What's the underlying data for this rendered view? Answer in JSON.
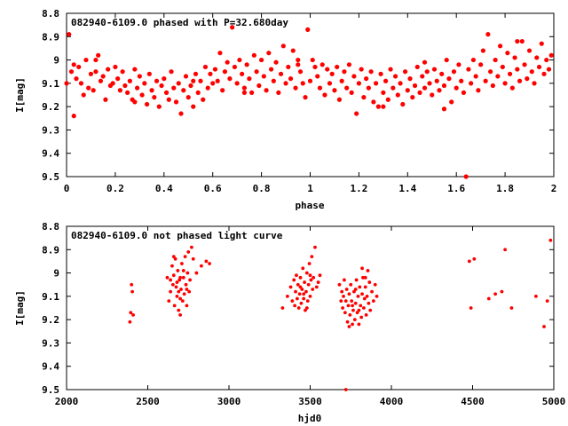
{
  "chart_data": [
    {
      "type": "scatter",
      "title": "082940-6109.0 phased with P=32.680day",
      "xlabel": "phase",
      "ylabel": "I[mag]",
      "xlim": [
        0,
        2
      ],
      "ylim": [
        8.8,
        9.5
      ],
      "y_inverted": true,
      "grid": false,
      "legend": "none",
      "marker_color": "#ff0000",
      "xticks": [
        "0",
        "0.2",
        "0.4",
        "0.6",
        "0.8",
        "1",
        "1.2",
        "1.4",
        "1.6",
        "1.8",
        "2"
      ],
      "yticks": [
        "8.8",
        "8.9",
        "9",
        "9.1",
        "9.2",
        "9.3",
        "9.4",
        "9.5"
      ],
      "points": [
        [
          0.0,
          9.1
        ],
        [
          0.01,
          8.89
        ],
        [
          0.02,
          9.05
        ],
        [
          0.03,
          9.02
        ],
        [
          0.03,
          9.24
        ],
        [
          0.04,
          9.08
        ],
        [
          0.05,
          9.03
        ],
        [
          0.06,
          9.1
        ],
        [
          0.07,
          9.15
        ],
        [
          0.08,
          9.0
        ],
        [
          0.09,
          9.12
        ],
        [
          0.1,
          9.06
        ],
        [
          0.11,
          9.13
        ],
        [
          0.12,
          9.05
        ],
        [
          0.13,
          8.98
        ],
        [
          0.14,
          9.09
        ],
        [
          0.15,
          9.07
        ],
        [
          0.16,
          9.17
        ],
        [
          0.17,
          9.04
        ],
        [
          0.18,
          9.11
        ],
        [
          0.19,
          9.1
        ],
        [
          0.2,
          9.03
        ],
        [
          0.21,
          9.08
        ],
        [
          0.22,
          9.13
        ],
        [
          0.23,
          9.05
        ],
        [
          0.24,
          9.11
        ],
        [
          0.25,
          9.14
        ],
        [
          0.26,
          9.09
        ],
        [
          0.27,
          9.17
        ],
        [
          0.28,
          9.04
        ],
        [
          0.29,
          9.12
        ],
        [
          0.3,
          9.07
        ],
        [
          0.31,
          9.15
        ],
        [
          0.32,
          9.1
        ],
        [
          0.33,
          9.19
        ],
        [
          0.34,
          9.06
        ],
        [
          0.35,
          9.13
        ],
        [
          0.36,
          9.16
        ],
        [
          0.37,
          9.09
        ],
        [
          0.38,
          9.2
        ],
        [
          0.39,
          9.11
        ],
        [
          0.4,
          9.08
        ],
        [
          0.41,
          9.14
        ],
        [
          0.42,
          9.17
        ],
        [
          0.43,
          9.05
        ],
        [
          0.44,
          9.12
        ],
        [
          0.45,
          9.18
        ],
        [
          0.46,
          9.1
        ],
        [
          0.47,
          9.23
        ],
        [
          0.48,
          9.13
        ],
        [
          0.49,
          9.07
        ],
        [
          0.5,
          9.16
        ],
        [
          0.51,
          9.11
        ],
        [
          0.52,
          9.2
        ],
        [
          0.53,
          9.06
        ],
        [
          0.54,
          9.14
        ],
        [
          0.55,
          9.09
        ],
        [
          0.56,
          9.17
        ],
        [
          0.57,
          9.03
        ],
        [
          0.58,
          9.12
        ],
        [
          0.59,
          9.06
        ],
        [
          0.6,
          9.1
        ],
        [
          0.61,
          9.04
        ],
        [
          0.62,
          9.09
        ],
        [
          0.63,
          8.97
        ],
        [
          0.64,
          9.13
        ],
        [
          0.65,
          9.05
        ],
        [
          0.66,
          9.01
        ],
        [
          0.67,
          9.08
        ],
        [
          0.68,
          8.86
        ],
        [
          0.69,
          9.03
        ],
        [
          0.7,
          9.1
        ],
        [
          0.71,
          9.0
        ],
        [
          0.72,
          9.06
        ],
        [
          0.73,
          9.12
        ],
        [
          0.74,
          9.02
        ],
        [
          0.75,
          9.08
        ],
        [
          0.76,
          9.14
        ],
        [
          0.77,
          8.98
        ],
        [
          0.78,
          9.05
        ],
        [
          0.79,
          9.11
        ],
        [
          0.8,
          9.0
        ],
        [
          0.81,
          9.07
        ],
        [
          0.82,
          9.13
        ],
        [
          0.83,
          8.97
        ],
        [
          0.84,
          9.04
        ],
        [
          0.85,
          9.09
        ],
        [
          0.86,
          9.01
        ],
        [
          0.87,
          9.14
        ],
        [
          0.88,
          9.06
        ],
        [
          0.89,
          8.94
        ],
        [
          0.9,
          9.1
        ],
        [
          0.91,
          9.03
        ],
        [
          0.92,
          9.08
        ],
        [
          0.93,
          8.96
        ],
        [
          0.94,
          9.12
        ],
        [
          0.95,
          9.02
        ],
        [
          0.96,
          9.05
        ],
        [
          0.97,
          9.1
        ],
        [
          0.98,
          9.16
        ],
        [
          0.99,
          8.87
        ],
        [
          1.0,
          9.09
        ],
        [
          1.01,
          9.0
        ],
        [
          1.02,
          9.03
        ],
        [
          1.03,
          9.07
        ],
        [
          1.04,
          9.12
        ],
        [
          1.05,
          9.02
        ],
        [
          1.06,
          9.15
        ],
        [
          1.07,
          9.04
        ],
        [
          1.08,
          9.1
        ],
        [
          1.09,
          9.06
        ],
        [
          1.1,
          9.13
        ],
        [
          1.11,
          9.03
        ],
        [
          1.12,
          9.17
        ],
        [
          1.13,
          9.09
        ],
        [
          1.14,
          9.05
        ],
        [
          1.15,
          9.12
        ],
        [
          1.16,
          9.02
        ],
        [
          1.17,
          9.14
        ],
        [
          1.18,
          9.07
        ],
        [
          1.19,
          9.23
        ],
        [
          1.2,
          9.1
        ],
        [
          1.21,
          9.04
        ],
        [
          1.22,
          9.16
        ],
        [
          1.23,
          9.08
        ],
        [
          1.24,
          9.12
        ],
        [
          1.25,
          9.05
        ],
        [
          1.26,
          9.18
        ],
        [
          1.27,
          9.1
        ],
        [
          1.28,
          9.2
        ],
        [
          1.29,
          9.06
        ],
        [
          1.3,
          9.14
        ],
        [
          1.31,
          9.09
        ],
        [
          1.32,
          9.17
        ],
        [
          1.33,
          9.04
        ],
        [
          1.34,
          9.12
        ],
        [
          1.35,
          9.07
        ],
        [
          1.36,
          9.15
        ],
        [
          1.37,
          9.1
        ],
        [
          1.38,
          9.19
        ],
        [
          1.39,
          9.05
        ],
        [
          1.4,
          9.13
        ],
        [
          1.41,
          9.08
        ],
        [
          1.42,
          9.16
        ],
        [
          1.43,
          9.11
        ],
        [
          1.44,
          9.03
        ],
        [
          1.45,
          9.14
        ],
        [
          1.46,
          9.07
        ],
        [
          1.47,
          9.12
        ],
        [
          1.48,
          9.05
        ],
        [
          1.49,
          9.1
        ],
        [
          1.5,
          9.15
        ],
        [
          1.51,
          9.04
        ],
        [
          1.52,
          9.09
        ],
        [
          1.53,
          9.13
        ],
        [
          1.54,
          9.06
        ],
        [
          1.55,
          9.11
        ],
        [
          1.56,
          9.0
        ],
        [
          1.57,
          9.08
        ],
        [
          1.58,
          9.18
        ],
        [
          1.59,
          9.05
        ],
        [
          1.6,
          9.12
        ],
        [
          1.61,
          9.02
        ],
        [
          1.62,
          9.09
        ],
        [
          1.63,
          9.14
        ],
        [
          1.64,
          9.5
        ],
        [
          1.65,
          9.04
        ],
        [
          1.66,
          9.1
        ],
        [
          1.67,
          9.0
        ],
        [
          1.68,
          9.07
        ],
        [
          1.69,
          9.13
        ],
        [
          1.7,
          9.02
        ],
        [
          1.71,
          8.96
        ],
        [
          1.72,
          9.09
        ],
        [
          1.73,
          8.89
        ],
        [
          1.74,
          9.05
        ],
        [
          1.75,
          9.11
        ],
        [
          1.76,
          9.0
        ],
        [
          1.77,
          9.07
        ],
        [
          1.78,
          8.94
        ],
        [
          1.79,
          9.03
        ],
        [
          1.8,
          9.1
        ],
        [
          1.81,
          8.97
        ],
        [
          1.82,
          9.06
        ],
        [
          1.83,
          9.12
        ],
        [
          1.84,
          8.99
        ],
        [
          1.85,
          9.04
        ],
        [
          1.86,
          9.09
        ],
        [
          1.87,
          8.92
        ],
        [
          1.88,
          9.02
        ],
        [
          1.89,
          9.08
        ],
        [
          1.9,
          8.96
        ],
        [
          1.91,
          9.05
        ],
        [
          1.92,
          9.1
        ],
        [
          1.93,
          8.99
        ],
        [
          1.94,
          9.03
        ],
        [
          1.95,
          8.93
        ],
        [
          1.96,
          9.06
        ],
        [
          1.97,
          9.0
        ],
        [
          1.98,
          9.04
        ],
        [
          1.99,
          8.98
        ],
        [
          0.52,
          9.09
        ],
        [
          0.28,
          9.18
        ],
        [
          0.95,
          9.0
        ],
        [
          1.3,
          9.2
        ],
        [
          1.55,
          9.21
        ],
        [
          0.12,
          9.0
        ],
        [
          0.73,
          9.14
        ],
        [
          1.47,
          9.01
        ],
        [
          1.85,
          8.92
        ]
      ]
    },
    {
      "type": "scatter",
      "title": "082940-6109.0 not phased light curve",
      "xlabel": "hjd0",
      "ylabel": "I[mag]",
      "xlim": [
        2000,
        5000
      ],
      "ylim": [
        8.8,
        9.5
      ],
      "y_inverted": true,
      "grid": false,
      "legend": "none",
      "marker_color": "#ff0000",
      "xticks": [
        "2000",
        "2500",
        "3000",
        "3500",
        "4000",
        "4500",
        "5000"
      ],
      "yticks": [
        "8.8",
        "8.9",
        "9",
        "9.1",
        "9.2",
        "9.3",
        "9.4",
        "9.5"
      ],
      "points": [
        [
          2390,
          9.21
        ],
        [
          2395,
          9.17
        ],
        [
          2400,
          9.05
        ],
        [
          2405,
          9.08
        ],
        [
          2410,
          9.18
        ],
        [
          2620,
          9.02
        ],
        [
          2630,
          9.12
        ],
        [
          2640,
          9.08
        ],
        [
          2650,
          8.97
        ],
        [
          2655,
          9.05
        ],
        [
          2660,
          9.01
        ],
        [
          2665,
          9.14
        ],
        [
          2670,
          8.94
        ],
        [
          2675,
          9.06
        ],
        [
          2680,
          9.1
        ],
        [
          2685,
          8.99
        ],
        [
          2690,
          9.16
        ],
        [
          2695,
          9.03
        ],
        [
          2700,
          9.18
        ],
        [
          2705,
          9.07
        ],
        [
          2710,
          8.96
        ],
        [
          2715,
          9.12
        ],
        [
          2720,
          9.02
        ],
        [
          2725,
          9.09
        ],
        [
          2730,
          8.93
        ],
        [
          2735,
          9.05
        ],
        [
          2740,
          9.14
        ],
        [
          2745,
          9.0
        ],
        [
          2750,
          8.91
        ],
        [
          2755,
          9.08
        ],
        [
          2760,
          9.03
        ],
        [
          2770,
          8.89
        ],
        [
          2780,
          8.94
        ],
        [
          2800,
          9.0
        ],
        [
          2830,
          8.97
        ],
        [
          2860,
          8.95
        ],
        [
          2880,
          8.96
        ],
        [
          2640,
          9.03
        ],
        [
          2660,
          8.93
        ],
        [
          2680,
          9.04
        ],
        [
          2700,
          9.11
        ],
        [
          2720,
          8.99
        ],
        [
          2740,
          9.07
        ],
        [
          2700,
          9.02
        ],
        [
          2690,
          9.08
        ],
        [
          3330,
          9.15
        ],
        [
          3360,
          9.1
        ],
        [
          3380,
          9.06
        ],
        [
          3390,
          9.12
        ],
        [
          3400,
          9.03
        ],
        [
          3405,
          9.14
        ],
        [
          3410,
          9.08
        ],
        [
          3415,
          9.01
        ],
        [
          3420,
          9.11
        ],
        [
          3425,
          9.05
        ],
        [
          3430,
          9.15
        ],
        [
          3435,
          9.09
        ],
        [
          3440,
          9.02
        ],
        [
          3445,
          9.13
        ],
        [
          3450,
          9.07
        ],
        [
          3455,
          8.98
        ],
        [
          3460,
          9.11
        ],
        [
          3465,
          9.04
        ],
        [
          3470,
          9.16
        ],
        [
          3475,
          9.08
        ],
        [
          3480,
          9.0
        ],
        [
          3485,
          9.12
        ],
        [
          3490,
          9.05
        ],
        [
          3495,
          8.96
        ],
        [
          3500,
          9.1
        ],
        [
          3505,
          9.03
        ],
        [
          3510,
          8.93
        ],
        [
          3515,
          9.07
        ],
        [
          3520,
          9.02
        ],
        [
          3530,
          8.89
        ],
        [
          3540,
          9.06
        ],
        [
          3550,
          9.04
        ],
        [
          3560,
          9.01
        ],
        [
          3440,
          9.06
        ],
        [
          3460,
          9.09
        ],
        [
          3480,
          9.15
        ],
        [
          3500,
          9.01
        ],
        [
          3680,
          9.05
        ],
        [
          3690,
          9.12
        ],
        [
          3695,
          9.08
        ],
        [
          3700,
          9.15
        ],
        [
          3705,
          9.1
        ],
        [
          3710,
          9.03
        ],
        [
          3715,
          9.17
        ],
        [
          3720,
          9.12
        ],
        [
          3725,
          9.07
        ],
        [
          3730,
          9.21
        ],
        [
          3735,
          9.14
        ],
        [
          3740,
          9.09
        ],
        [
          3745,
          9.18
        ],
        [
          3750,
          9.05
        ],
        [
          3755,
          9.12
        ],
        [
          3760,
          9.22
        ],
        [
          3765,
          9.16
        ],
        [
          3770,
          9.08
        ],
        [
          3775,
          9.2
        ],
        [
          3780,
          9.13
        ],
        [
          3785,
          9.03
        ],
        [
          3790,
          9.17
        ],
        [
          3795,
          9.1
        ],
        [
          3800,
          9.22
        ],
        [
          3805,
          9.06
        ],
        [
          3810,
          9.14
        ],
        [
          3815,
          9.19
        ],
        [
          3820,
          9.09
        ],
        [
          3825,
          9.02
        ],
        [
          3830,
          9.15
        ],
        [
          3835,
          9.11
        ],
        [
          3840,
          9.06
        ],
        [
          3845,
          9.18
        ],
        [
          3850,
          9.1
        ],
        [
          3855,
          8.99
        ],
        [
          3860,
          9.13
        ],
        [
          3865,
          9.04
        ],
        [
          3870,
          9.16
        ],
        [
          3880,
          9.08
        ],
        [
          3890,
          9.12
        ],
        [
          3900,
          9.05
        ],
        [
          3910,
          9.1
        ],
        [
          3720,
          9.5
        ],
        [
          3740,
          9.23
        ],
        [
          3760,
          9.14
        ],
        [
          3780,
          9.07
        ],
        [
          3800,
          9.16
        ],
        [
          3820,
          8.98
        ],
        [
          3840,
          9.02
        ],
        [
          4480,
          8.95
        ],
        [
          4490,
          9.15
        ],
        [
          4510,
          8.94
        ],
        [
          4600,
          9.11
        ],
        [
          4640,
          9.09
        ],
        [
          4680,
          9.08
        ],
        [
          4700,
          8.9
        ],
        [
          4740,
          9.15
        ],
        [
          4890,
          9.1
        ],
        [
          4940,
          9.23
        ],
        [
          4960,
          9.12
        ],
        [
          4980,
          8.86
        ]
      ]
    }
  ]
}
